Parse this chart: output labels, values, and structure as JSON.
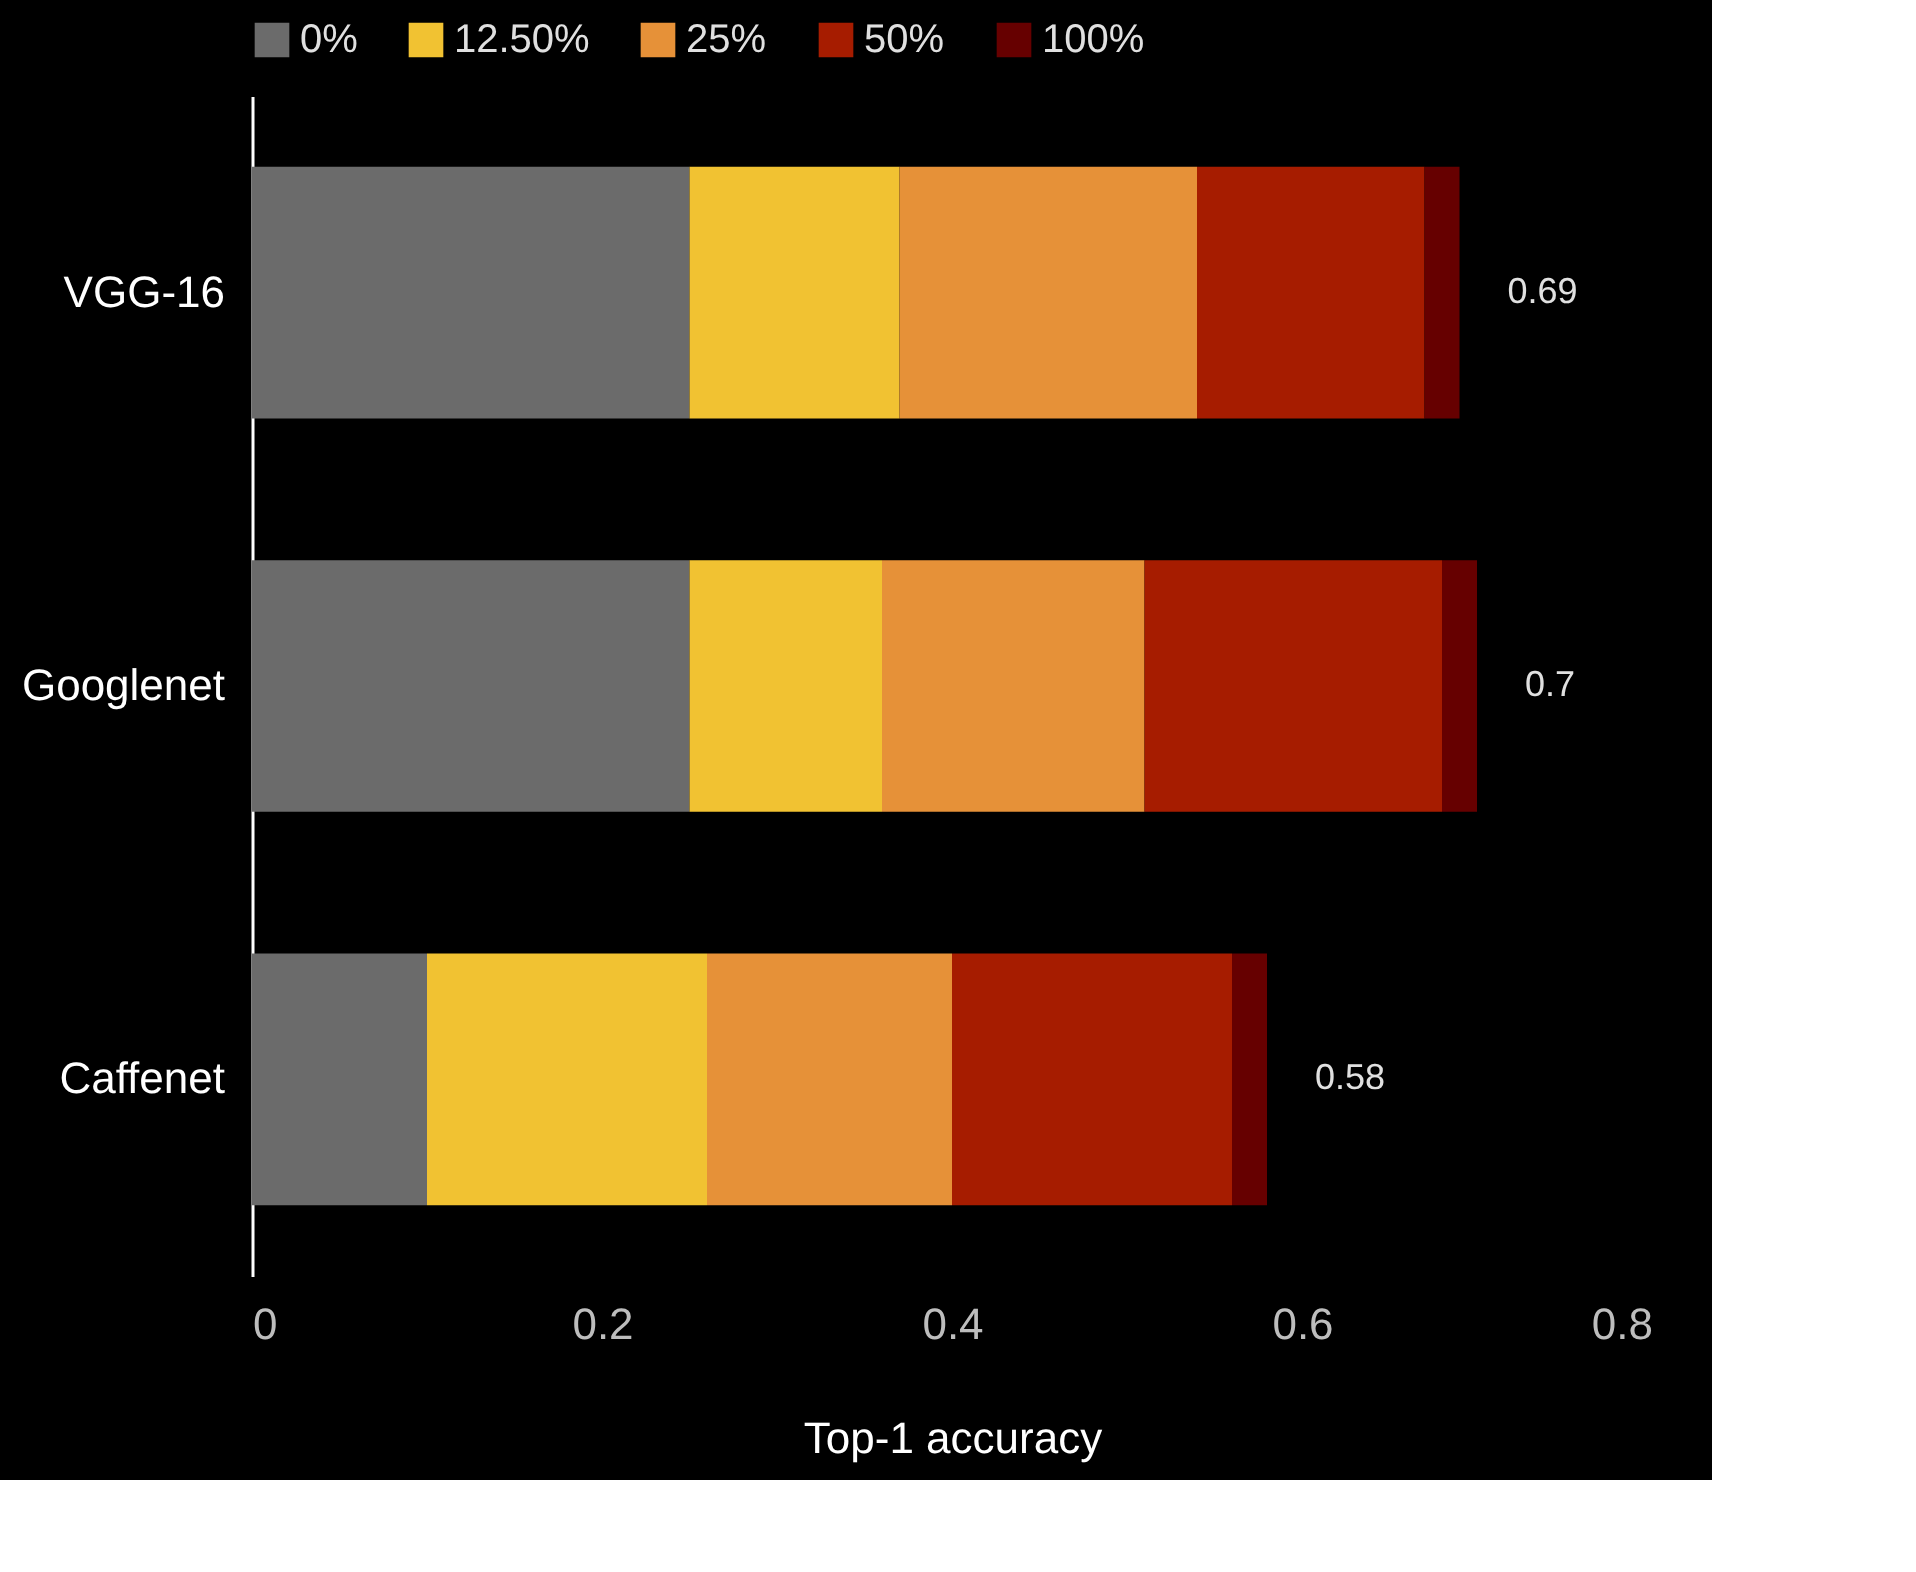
{
  "chart_data": {
    "type": "bar",
    "orientation": "horizontal",
    "stacked": true,
    "categories": [
      "VGG-16",
      "Googlenet",
      "Caffenet"
    ],
    "series": [
      {
        "name": "0%",
        "color": "#6b6b6b",
        "values": [
          0.25,
          0.25,
          0.1
        ]
      },
      {
        "name": "12.50%",
        "color": "#f1c232",
        "values": [
          0.12,
          0.11,
          0.16
        ]
      },
      {
        "name": "25%",
        "color": "#e69138",
        "values": [
          0.17,
          0.15,
          0.14
        ]
      },
      {
        "name": "50%",
        "color": "#a61c00",
        "values": [
          0.13,
          0.17,
          0.16
        ]
      },
      {
        "name": "100%",
        "color": "#660000",
        "values": [
          0.02,
          0.02,
          0.02
        ]
      }
    ],
    "totals": [
      "0.69",
      "0.7",
      "0.58"
    ],
    "xlabel": "Top-1 accuracy",
    "xlim": [
      0,
      0.8
    ],
    "xticks": [
      0,
      0.2,
      0.4,
      0.6,
      0.8
    ],
    "grid": false,
    "legend": "top"
  }
}
